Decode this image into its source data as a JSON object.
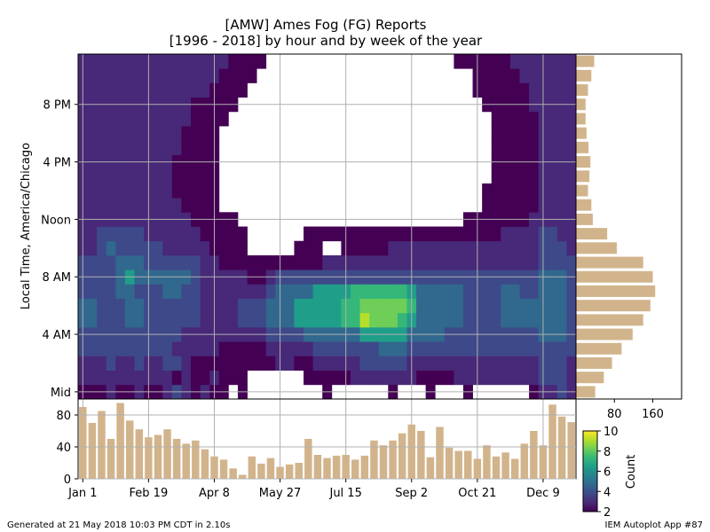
{
  "chart_data": {
    "type": "heatmap",
    "title": "[AMW] Ames Fog (FG) Reports",
    "subtitle": "[1996 - 2018] by hour and by week of the year",
    "ylabel": "Local Time, America/Chicago",
    "x_tick_labels": [
      "Jan 1",
      "Feb 19",
      "Apr 8",
      "May 27",
      "Jul 15",
      "Sep 2",
      "Oct 21",
      "Dec 9"
    ],
    "y_tick_labels": [
      "Mid",
      "4 AM",
      "8 AM",
      "Noon",
      "4 PM",
      "8 PM"
    ],
    "weeks": 53,
    "hours": 24,
    "colorbar": {
      "label": "Count",
      "min": 2,
      "max": 10,
      "ticks": [
        2,
        4,
        6,
        8,
        10
      ]
    },
    "heatmap_low": [
      [
        2,
        2,
        2,
        3,
        2,
        2,
        3,
        2,
        2,
        3,
        4,
        3,
        2,
        3,
        2,
        2,
        0,
        2,
        0,
        0,
        0,
        0,
        0,
        0,
        0,
        0,
        2,
        0,
        0,
        0,
        0,
        0,
        0,
        2,
        0,
        0,
        0,
        2,
        0,
        0,
        0,
        2,
        0,
        0,
        0,
        0,
        0,
        0,
        2,
        3,
        3,
        4,
        3
      ],
      [
        3,
        3,
        3,
        3,
        3,
        3,
        3,
        3,
        3,
        3,
        2,
        3,
        2,
        2,
        3,
        2,
        2,
        2,
        0,
        0,
        0,
        0,
        0,
        0,
        2,
        2,
        2,
        2,
        2,
        3,
        3,
        3,
        3,
        3,
        3,
        3,
        2,
        2,
        2,
        2,
        3,
        3,
        3,
        3,
        3,
        3,
        3,
        3,
        3,
        4,
        4,
        4,
        3
      ],
      [
        3,
        3,
        3,
        4,
        3,
        3,
        4,
        3,
        3,
        4,
        4,
        3,
        2,
        2,
        2,
        2,
        2,
        2,
        2,
        2,
        2,
        3,
        3,
        2,
        2,
        3,
        3,
        3,
        3,
        3,
        4,
        4,
        4,
        4,
        4,
        3,
        3,
        3,
        3,
        3,
        3,
        3,
        3,
        3,
        3,
        3,
        3,
        3,
        3,
        4,
        4,
        4,
        3
      ],
      [
        4,
        4,
        4,
        4,
        4,
        4,
        4,
        4,
        4,
        4,
        3,
        3,
        3,
        3,
        3,
        2,
        2,
        2,
        2,
        2,
        3,
        3,
        3,
        3,
        3,
        4,
        4,
        4,
        4,
        4,
        4,
        4,
        5,
        5,
        5,
        4,
        4,
        4,
        4,
        4,
        4,
        4,
        4,
        4,
        4,
        4,
        4,
        4,
        4,
        4,
        4,
        4,
        4
      ],
      [
        4,
        4,
        4,
        4,
        4,
        4,
        4,
        4,
        4,
        4,
        4,
        3,
        3,
        3,
        3,
        3,
        3,
        3,
        3,
        3,
        4,
        4,
        4,
        4,
        5,
        5,
        5,
        5,
        5,
        5,
        6,
        6,
        6,
        6,
        6,
        5,
        5,
        5,
        5,
        4,
        4,
        4,
        4,
        4,
        4,
        4,
        4,
        4,
        4,
        5,
        5,
        5,
        4
      ],
      [
        5,
        5,
        4,
        4,
        4,
        5,
        5,
        4,
        4,
        4,
        4,
        4,
        4,
        3,
        3,
        3,
        3,
        4,
        4,
        4,
        5,
        5,
        5,
        6,
        6,
        6,
        6,
        6,
        7,
        7,
        9,
        8,
        8,
        8,
        7,
        6,
        5,
        5,
        5,
        5,
        5,
        4,
        4,
        4,
        4,
        5,
        5,
        5,
        5,
        5,
        5,
        5,
        4
      ],
      [
        5,
        5,
        4,
        4,
        4,
        5,
        5,
        4,
        4,
        4,
        4,
        4,
        4,
        3,
        3,
        3,
        3,
        4,
        4,
        4,
        5,
        5,
        5,
        6,
        6,
        6,
        6,
        6,
        7,
        7,
        8,
        8,
        8,
        8,
        8,
        7,
        5,
        5,
        5,
        5,
        5,
        4,
        4,
        4,
        4,
        5,
        5,
        5,
        5,
        5,
        5,
        5,
        4
      ],
      [
        4,
        4,
        4,
        4,
        5,
        5,
        4,
        4,
        4,
        5,
        5,
        4,
        4,
        3,
        3,
        3,
        3,
        3,
        3,
        3,
        4,
        5,
        5,
        5,
        5,
        6,
        6,
        6,
        6,
        7,
        7,
        7,
        7,
        7,
        7,
        6,
        5,
        5,
        5,
        5,
        5,
        4,
        4,
        4,
        4,
        5,
        5,
        4,
        4,
        5,
        5,
        5,
        4
      ],
      [
        4,
        4,
        4,
        4,
        5,
        6,
        5,
        5,
        5,
        5,
        5,
        5,
        4,
        3,
        3,
        3,
        3,
        3,
        2,
        2,
        3,
        4,
        4,
        4,
        4,
        4,
        4,
        4,
        4,
        4,
        4,
        4,
        4,
        4,
        4,
        4,
        4,
        4,
        4,
        4,
        4,
        4,
        4,
        4,
        4,
        4,
        4,
        4,
        4,
        5,
        5,
        5,
        4
      ],
      [
        4,
        4,
        4,
        4,
        5,
        5,
        5,
        4,
        4,
        4,
        4,
        4,
        4,
        3,
        3,
        2,
        2,
        2,
        2,
        2,
        2,
        2,
        2,
        2,
        2,
        2,
        3,
        3,
        3,
        3,
        3,
        3,
        3,
        3,
        3,
        3,
        3,
        3,
        3,
        3,
        3,
        3,
        3,
        3,
        3,
        3,
        3,
        3,
        3,
        4,
        4,
        4,
        4
      ],
      [
        3,
        3,
        4,
        5,
        4,
        4,
        4,
        4,
        4,
        3,
        3,
        3,
        3,
        3,
        2,
        2,
        2,
        2,
        0,
        0,
        0,
        0,
        0,
        2,
        2,
        2,
        0,
        0,
        2,
        2,
        2,
        2,
        2,
        3,
        3,
        3,
        3,
        3,
        3,
        3,
        3,
        3,
        3,
        3,
        3,
        3,
        3,
        3,
        3,
        4,
        4,
        4,
        3
      ],
      [
        3,
        3,
        4,
        4,
        4,
        4,
        4,
        3,
        3,
        3,
        3,
        3,
        3,
        2,
        2,
        2,
        2,
        2,
        0,
        0,
        0,
        0,
        0,
        0,
        2,
        2,
        2,
        2,
        2,
        2,
        2,
        2,
        2,
        2,
        2,
        2,
        2,
        2,
        2,
        2,
        2,
        2,
        2,
        2,
        2,
        3,
        3,
        3,
        3,
        4,
        4,
        3,
        3
      ]
    ],
    "heatmap_high": [
      [
        3,
        3,
        3,
        3,
        3,
        3,
        3,
        3,
        3,
        3,
        3,
        3,
        2,
        2,
        2,
        2,
        2,
        0,
        0,
        0,
        0,
        0,
        0,
        0,
        0,
        0,
        0,
        0,
        0,
        0,
        0,
        0,
        0,
        0,
        0,
        0,
        0,
        0,
        0,
        0,
        0,
        2,
        2,
        2,
        2,
        2,
        2,
        2,
        3,
        3,
        3,
        3,
        3
      ],
      [
        3,
        3,
        3,
        3,
        3,
        3,
        3,
        3,
        3,
        3,
        3,
        2,
        2,
        2,
        2,
        0,
        0,
        0,
        0,
        0,
        0,
        0,
        0,
        0,
        0,
        0,
        0,
        0,
        0,
        0,
        0,
        0,
        0,
        0,
        0,
        0,
        0,
        0,
        0,
        0,
        0,
        0,
        0,
        2,
        2,
        2,
        2,
        2,
        2,
        3,
        3,
        3,
        3
      ],
      [
        3,
        3,
        3,
        3,
        3,
        3,
        3,
        3,
        3,
        3,
        2,
        2,
        2,
        2,
        2,
        0,
        0,
        0,
        0,
        0,
        0,
        0,
        0,
        0,
        0,
        0,
        0,
        0,
        0,
        0,
        0,
        0,
        0,
        0,
        0,
        0,
        0,
        0,
        0,
        0,
        0,
        0,
        0,
        2,
        2,
        2,
        2,
        2,
        2,
        3,
        3,
        3,
        3
      ],
      [
        3,
        3,
        3,
        3,
        3,
        3,
        3,
        3,
        3,
        3,
        2,
        2,
        2,
        2,
        2,
        0,
        0,
        0,
        0,
        0,
        0,
        0,
        0,
        0,
        0,
        0,
        0,
        0,
        0,
        0,
        0,
        0,
        0,
        0,
        0,
        0,
        0,
        0,
        0,
        0,
        0,
        0,
        0,
        0,
        2,
        2,
        2,
        2,
        2,
        3,
        3,
        3,
        3
      ],
      [
        3,
        3,
        3,
        3,
        3,
        3,
        3,
        3,
        3,
        3,
        2,
        2,
        2,
        2,
        2,
        0,
        0,
        0,
        0,
        0,
        0,
        0,
        0,
        0,
        0,
        0,
        0,
        0,
        0,
        0,
        0,
        0,
        0,
        0,
        0,
        0,
        0,
        0,
        0,
        0,
        0,
        0,
        0,
        0,
        2,
        2,
        2,
        2,
        2,
        3,
        3,
        3,
        3
      ],
      [
        3,
        3,
        3,
        3,
        3,
        3,
        3,
        3,
        3,
        3,
        3,
        2,
        2,
        2,
        2,
        0,
        0,
        0,
        0,
        0,
        0,
        0,
        0,
        0,
        0,
        0,
        0,
        0,
        0,
        0,
        0,
        0,
        0,
        0,
        0,
        0,
        0,
        0,
        0,
        0,
        0,
        0,
        0,
        0,
        2,
        2,
        2,
        2,
        2,
        3,
        3,
        3,
        3
      ],
      [
        3,
        3,
        3,
        3,
        3,
        3,
        3,
        3,
        3,
        3,
        3,
        2,
        2,
        2,
        2,
        0,
        0,
        0,
        0,
        0,
        0,
        0,
        0,
        0,
        0,
        0,
        0,
        0,
        0,
        0,
        0,
        0,
        0,
        0,
        0,
        0,
        0,
        0,
        0,
        0,
        0,
        0,
        0,
        0,
        2,
        2,
        2,
        2,
        2,
        3,
        3,
        3,
        3
      ],
      [
        3,
        3,
        3,
        3,
        3,
        3,
        3,
        3,
        3,
        3,
        3,
        3,
        2,
        2,
        2,
        2,
        0,
        0,
        0,
        0,
        0,
        0,
        0,
        0,
        0,
        0,
        0,
        0,
        0,
        0,
        0,
        0,
        0,
        0,
        0,
        0,
        0,
        0,
        0,
        0,
        0,
        0,
        0,
        0,
        2,
        2,
        2,
        2,
        2,
        3,
        3,
        3,
        3
      ],
      [
        3,
        3,
        3,
        3,
        3,
        3,
        3,
        3,
        3,
        3,
        3,
        3,
        2,
        2,
        2,
        2,
        2,
        0,
        0,
        0,
        0,
        0,
        0,
        0,
        0,
        0,
        0,
        0,
        0,
        0,
        0,
        0,
        0,
        0,
        0,
        0,
        0,
        0,
        0,
        0,
        0,
        0,
        0,
        2,
        2,
        2,
        2,
        2,
        3,
        3,
        3,
        3,
        3
      ],
      [
        3,
        3,
        3,
        3,
        3,
        3,
        3,
        3,
        3,
        3,
        3,
        3,
        3,
        3,
        2,
        2,
        2,
        2,
        0,
        0,
        0,
        0,
        0,
        0,
        0,
        0,
        0,
        0,
        0,
        0,
        0,
        0,
        0,
        0,
        0,
        0,
        0,
        0,
        0,
        0,
        0,
        0,
        2,
        2,
        2,
        2,
        2,
        2,
        3,
        3,
        3,
        3,
        3
      ],
      [
        3,
        3,
        3,
        3,
        3,
        3,
        3,
        3,
        3,
        3,
        3,
        3,
        3,
        3,
        3,
        2,
        2,
        2,
        2,
        0,
        0,
        0,
        0,
        0,
        0,
        0,
        0,
        0,
        0,
        0,
        0,
        0,
        0,
        0,
        0,
        0,
        0,
        0,
        0,
        0,
        0,
        0,
        2,
        2,
        2,
        2,
        2,
        3,
        3,
        3,
        3,
        3,
        3
      ],
      [
        3,
        3,
        3,
        3,
        3,
        3,
        3,
        3,
        3,
        3,
        3,
        3,
        3,
        3,
        3,
        3,
        2,
        2,
        2,
        2,
        0,
        0,
        0,
        0,
        0,
        0,
        0,
        0,
        0,
        0,
        0,
        0,
        0,
        0,
        0,
        0,
        0,
        0,
        0,
        0,
        2,
        2,
        2,
        2,
        2,
        2,
        3,
        3,
        3,
        3,
        3,
        3,
        3
      ]
    ],
    "hourly_totals": {
      "type": "bar",
      "categories": [
        "Mid",
        "1 AM",
        "2 AM",
        "3 AM",
        "4 AM",
        "5 AM",
        "6 AM",
        "7 AM",
        "8 AM",
        "9 AM",
        "10 AM",
        "11 AM",
        "Noon",
        "1 PM",
        "2 PM",
        "3 PM",
        "4 PM",
        "5 PM",
        "6 PM",
        "7 PM",
        "8 PM",
        "9 PM",
        "10 PM",
        "11 PM"
      ],
      "values": [
        40,
        58,
        75,
        95,
        118,
        140,
        155,
        165,
        160,
        140,
        85,
        65,
        35,
        32,
        25,
        28,
        30,
        26,
        22,
        20,
        20,
        25,
        32,
        38
      ],
      "x_tick_labels": [
        "80",
        "160"
      ],
      "xlim": [
        0,
        220
      ]
    },
    "weekly_totals": {
      "type": "bar",
      "categories": [
        "Jan 1",
        "Feb 19",
        "Apr 8",
        "May 27",
        "Jul 15",
        "Sep 2",
        "Oct 21",
        "Dec 9"
      ],
      "values": [
        90,
        70,
        85,
        50,
        95,
        73,
        62,
        52,
        55,
        62,
        50,
        44,
        48,
        37,
        28,
        24,
        13,
        5,
        28,
        19,
        26,
        15,
        18,
        20,
        50,
        30,
        26,
        29,
        30,
        24,
        29,
        48,
        42,
        48,
        57,
        68,
        60,
        27,
        65,
        39,
        35,
        35,
        25,
        42,
        28,
        33,
        25,
        44,
        60,
        42,
        93,
        78,
        71
      ],
      "y_tick_labels": [
        "0",
        "40",
        "80"
      ],
      "ylim": [
        0,
        100
      ]
    }
  },
  "colors": {
    "bar": "#d2b48c",
    "grid": "#b0b0b0",
    "viridis": [
      "#440154",
      "#482878",
      "#3e4989",
      "#31688e",
      "#26828e",
      "#1f9e89",
      "#35b779",
      "#6ece58",
      "#b5de2b",
      "#fde725"
    ]
  },
  "footer": {
    "generated": "Generated at 21 May 2018 10:03 PM CDT in 2.10s",
    "app": "IEM Autoplot App #87"
  }
}
